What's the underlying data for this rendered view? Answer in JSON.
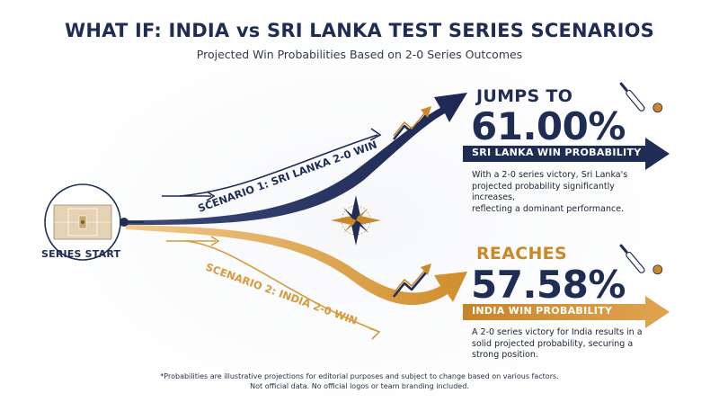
{
  "header": {
    "title": "WHAT IF: INDIA vs SRI LANKA TEST SERIES SCENARIOS",
    "subtitle": "Projected Win Probabilities Based on 2-0 Series Outcomes"
  },
  "start": {
    "label": "SERIES START"
  },
  "scenarios": {
    "sri_lanka": {
      "path_label": "SCENARIO 1: SRI LANKA 2-0 WIN",
      "lead": "JUMPS TO",
      "value": "61.00%",
      "band_label": "SRI LANKA WIN PROBABILITY",
      "description_lines": [
        "With a 2-0 series victory, Sri Lanka's",
        "projected probability significantly increases,",
        "reflecting a dominant performance."
      ],
      "color": "#1f2d55"
    },
    "india": {
      "path_label": "SCENARIO 2: INDIA 2-0 WIN",
      "lead": "REACHES",
      "value": "57.58%",
      "band_label": "INDIA WIN PROBABILITY",
      "description_lines": [
        "A 2-0 series victory for India results in a",
        "solid projected probability, securing a",
        "strong position."
      ],
      "color": "#d69a3a"
    }
  },
  "footnote": {
    "line1": "*Probabilities are illustrative projections for editorial purposes and subject to change based on various factors.",
    "line2": "Not official data. No official logos or team branding included."
  },
  "icons": [
    "cricket-pitch-icon",
    "compass-icon",
    "trend-up-icon",
    "cricket-bat-ball-icon"
  ]
}
